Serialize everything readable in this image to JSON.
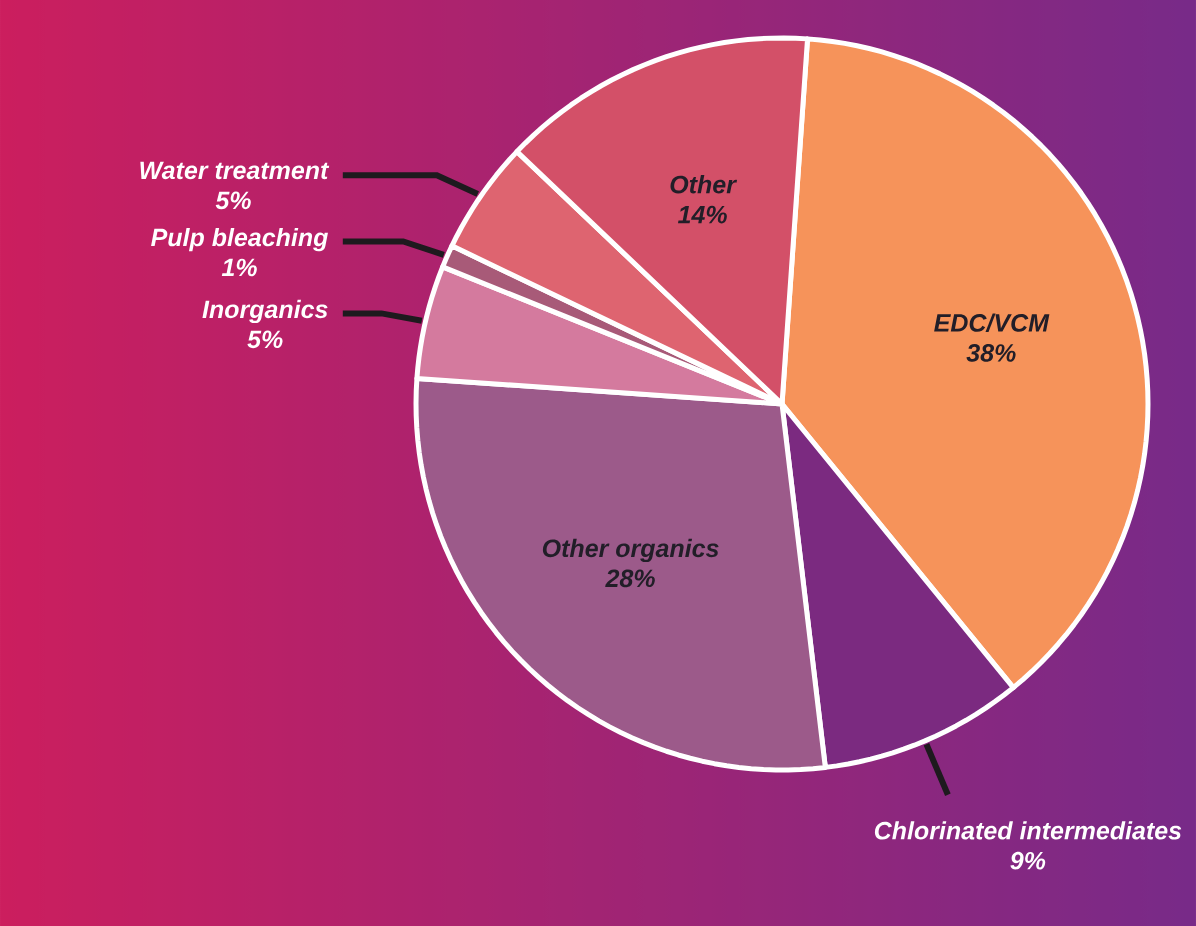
{
  "chart_data": {
    "type": "pie",
    "categories": [
      "EDC/VCM",
      "Chlorinated intermediates",
      "Other organics",
      "Inorganics",
      "Pulp bleaching",
      "Water treatment",
      "Other"
    ],
    "values": [
      38,
      9,
      28,
      5,
      1,
      5,
      14
    ],
    "colors": [
      "#f6935a",
      "#7b2a80",
      "#9c5a8a",
      "#d47a9e",
      "#a85a78",
      "#de6470",
      "#d35068"
    ],
    "value_labels": [
      "38%",
      "9%",
      "28%",
      "5%",
      "1%",
      "5%",
      "14%"
    ]
  }
}
